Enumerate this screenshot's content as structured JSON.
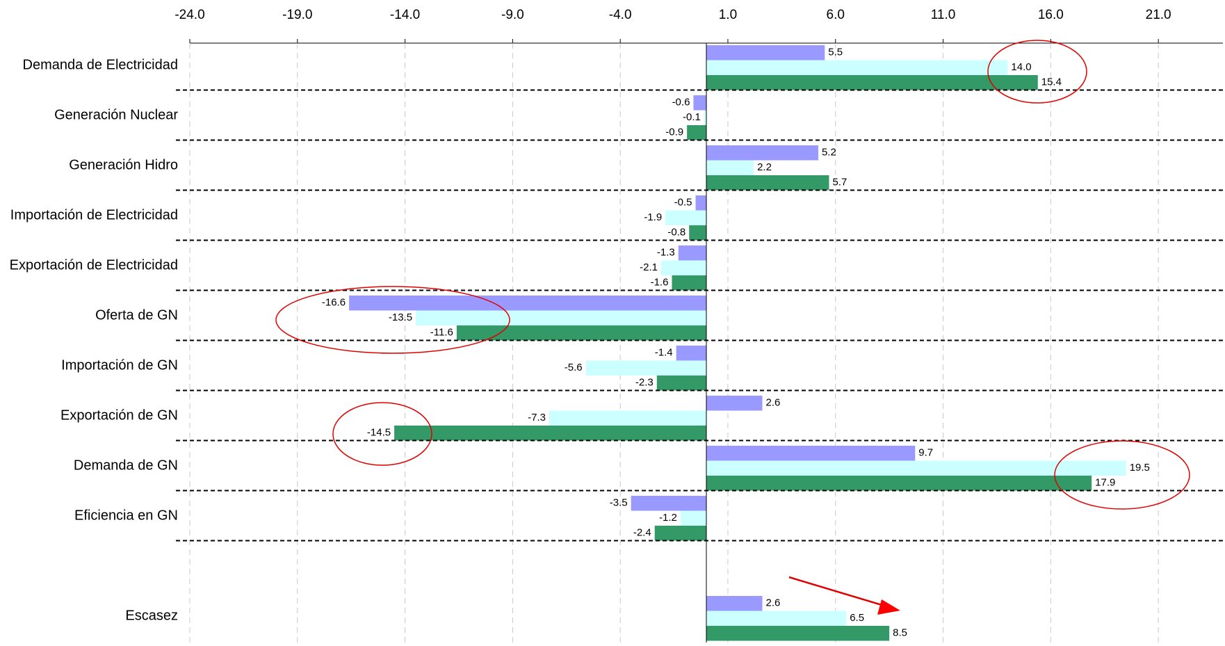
{
  "chart_data": {
    "type": "hbar",
    "categories": [
      "Demanda de Electricidad",
      "Generación Nuclear",
      "Generación Hidro",
      "Importación de Electricidad",
      "Exportación de Electricidad",
      "Oferta de GN",
      "Importación de GN",
      "Exportación de GN",
      "Demanda de GN",
      "Eficiencia en GN",
      null,
      "Escasez"
    ],
    "series": [
      {
        "color": "#9999ff",
        "values": [
          5.5,
          -0.6,
          5.2,
          -0.5,
          -1.3,
          -16.6,
          -1.4,
          2.6,
          9.7,
          -3.5,
          null,
          2.6
        ],
        "value_labels": [
          "5.5",
          "-0.6",
          "5.2",
          "-0.5",
          "-1.3",
          "-16.6",
          "-1.4",
          "2.6",
          "9.7",
          "-3.5",
          null,
          "2.6"
        ]
      },
      {
        "color": "#ccffff",
        "values": [
          14.0,
          -0.1,
          2.2,
          -1.9,
          -2.1,
          -13.5,
          -5.6,
          -7.3,
          19.5,
          -1.2,
          null,
          6.5
        ],
        "value_labels": [
          "14.0",
          "-0.1",
          "2.2",
          "-1.9",
          "-2.1",
          "-13.5",
          "-5.6",
          "-7.3",
          "19.5",
          "-1.2",
          null,
          "6.5"
        ]
      },
      {
        "color": "#339966",
        "values": [
          15.4,
          -0.9,
          5.7,
          -0.8,
          -1.6,
          -11.6,
          -2.3,
          -14.5,
          17.9,
          -2.4,
          null,
          8.5
        ],
        "value_labels": [
          "15.4",
          "-0.9",
          "5.7",
          "-0.8",
          "-1.6",
          "-11.6",
          "-2.3",
          "-14.5",
          "17.9",
          "-2.4",
          null,
          "8.5"
        ]
      }
    ],
    "xlim": [
      -24,
      24
    ],
    "xticks": [
      {
        "value": -24,
        "label": "-24.0"
      },
      {
        "value": -19,
        "label": "-19.0"
      },
      {
        "value": -14,
        "label": "-14.0"
      },
      {
        "value": -9,
        "label": "-9.0"
      },
      {
        "value": -4,
        "label": "-4.0"
      },
      {
        "value": 1,
        "label": "1.0"
      },
      {
        "value": 6,
        "label": "6.0"
      },
      {
        "value": 11,
        "label": "11.0"
      },
      {
        "value": 16,
        "label": "16.0"
      },
      {
        "value": 21,
        "label": "21.0"
      }
    ],
    "grid": true
  }
}
